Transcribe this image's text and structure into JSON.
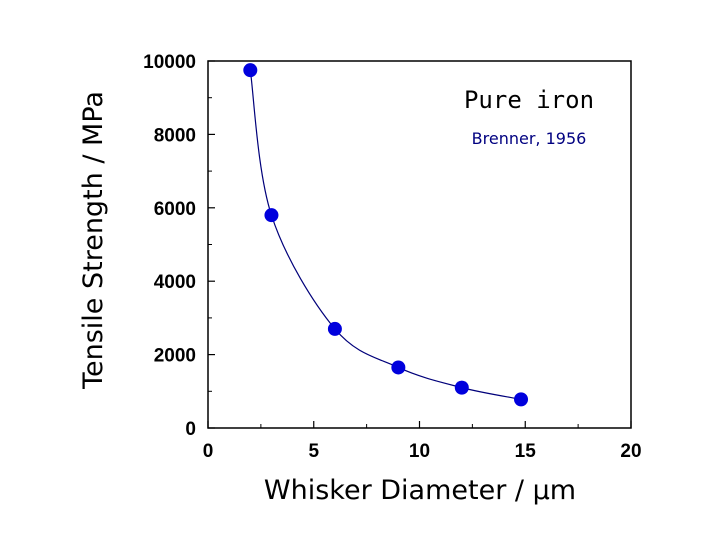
{
  "chart_data": {
    "type": "scatter",
    "xlabel": "Whisker Diameter / μm",
    "ylabel": "Tensile Strength / MPa",
    "xlim": [
      0,
      20
    ],
    "ylim": [
      0,
      10000
    ],
    "x_ticks": [
      "0",
      "5",
      "10",
      "15",
      "20"
    ],
    "y_ticks": [
      "0",
      "2000",
      "4000",
      "6000",
      "8000",
      "10000"
    ],
    "grid": false,
    "points": [
      {
        "x": 2,
        "y": 9750
      },
      {
        "x": 3,
        "y": 5800
      },
      {
        "x": 6,
        "y": 2700
      },
      {
        "x": 9,
        "y": 1650
      },
      {
        "x": 12,
        "y": 1100
      },
      {
        "x": 14.8,
        "y": 780
      }
    ],
    "fit_curve": "smooth trend line through points",
    "annotations": [
      {
        "text": "Pure iron"
      },
      {
        "text": "Brenner, 1956"
      }
    ],
    "colors": {
      "points": "#0000dd",
      "line": "#00007a",
      "citation": "#000080"
    }
  }
}
